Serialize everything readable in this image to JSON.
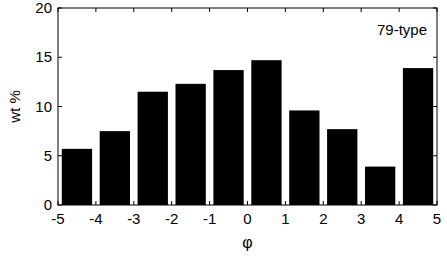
{
  "chart_data": {
    "type": "histogram",
    "title": "79-type",
    "x_label": "φ",
    "y_label": "wt %",
    "bins": [
      -5,
      -4,
      -3,
      -2,
      -1,
      0,
      1,
      2,
      3,
      4,
      5
    ],
    "values": [
      5.7,
      7.5,
      11.5,
      12.3,
      13.7,
      14.7,
      9.6,
      7.7,
      3.9,
      13.9
    ],
    "color": "#000000",
    "xlim": [
      -5,
      5
    ],
    "xticks": [
      -5,
      -4,
      -3,
      -2,
      -1,
      0,
      1,
      2,
      3,
      4,
      5
    ],
    "ylim": [
      0,
      20
    ],
    "yticks": [
      0,
      5,
      10,
      15,
      20
    ],
    "grid": false
  }
}
